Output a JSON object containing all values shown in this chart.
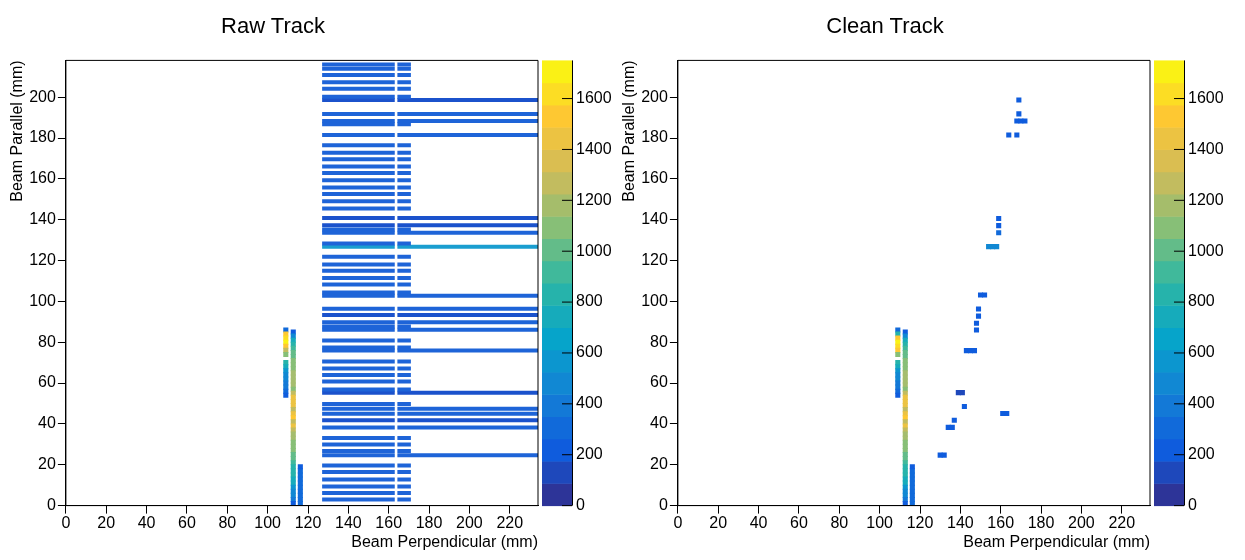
{
  "chart_data": [
    {
      "type": "scatter",
      "title": "Raw Track",
      "xlabel": "Beam Perpendicular (mm)",
      "ylabel": "Beam Parallel (mm)",
      "xlim": [
        0,
        234
      ],
      "ylim": [
        0,
        218
      ],
      "xticks": [
        0,
        20,
        40,
        60,
        80,
        100,
        120,
        140,
        160,
        180,
        200,
        220
      ],
      "yticks": [
        0,
        20,
        40,
        60,
        80,
        100,
        120,
        140,
        160,
        180,
        200
      ],
      "clim": [
        0,
        1750
      ],
      "cticks": [
        0,
        200,
        400,
        600,
        800,
        1000,
        1200,
        1400,
        1600
      ],
      "series": [
        {
          "marker": "square",
          "x": [
            109,
            109,
            109,
            109,
            109,
            109,
            109,
            109,
            109,
            109,
            109,
            109,
            109,
            109,
            109,
            109
          ],
          "values": [
            86,
            84,
            82,
            80,
            78,
            76,
            74,
            70,
            68,
            66,
            64,
            62,
            60,
            58,
            56,
            54
          ],
          "colors": [
            "#116ada",
            "#fec832",
            "#fcdd24",
            "#faf315",
            "#fec832",
            "#c2bc5f",
            "#87bf77",
            "#26b3ab",
            "#16abbb",
            "#0c96cf",
            "#1188d3",
            "#1188d3",
            "#1379d7",
            "#1379d7",
            "#116ada",
            "#0f5cdd"
          ]
        },
        {
          "marker": "square",
          "x": [
            112.7,
            112.7,
            112.7,
            112.7,
            112.7,
            112.7,
            112.7,
            112.7,
            112.7,
            112.7,
            112.7,
            112.7,
            112.7,
            112.7,
            112.7,
            112.7,
            112.7,
            112.7,
            112.7,
            112.7,
            112.7,
            112.7,
            112.7,
            112.7,
            112.7,
            112.7,
            112.7,
            112.7,
            112.7,
            112.7,
            112.7,
            112.7,
            112.7,
            112.7,
            112.7,
            112.7,
            112.7,
            112.7,
            112.7,
            112.7,
            112.7,
            112.7,
            112.7
          ],
          "values": [
            85,
            83,
            81,
            79,
            77,
            75,
            73,
            71,
            69,
            67,
            65,
            63,
            61,
            59,
            57,
            55,
            53,
            51,
            49,
            47,
            45,
            43,
            41,
            39,
            37,
            35,
            33,
            31,
            29,
            27,
            25,
            23,
            21,
            19,
            17,
            15,
            13,
            11,
            9,
            7,
            5,
            3,
            1
          ],
          "colors": [
            "#0f5cdd",
            "#1188d3",
            "#16abbb",
            "#26b3ab",
            "#40b99b",
            "#63bc89",
            "#63bc89",
            "#87bf77",
            "#87bf77",
            "#87bf77",
            "#a5bd6e",
            "#a5bd6e",
            "#a5bd6e",
            "#a5bd6e",
            "#87bf77",
            "#c2bc5f",
            "#ecc342",
            "#ecc342",
            "#ecc342",
            "#c2bc5f",
            "#ecc342",
            "#fec832",
            "#c2bc5f",
            "#ecc342",
            "#c2bc5f",
            "#a5bd6e",
            "#a5bd6e",
            "#87bf77",
            "#87bf77",
            "#87bf77",
            "#63bc89",
            "#63bc89",
            "#40b99b",
            "#26b3ab",
            "#26b3ab",
            "#26b3ab",
            "#16abbb",
            "#16abbb",
            "#0c96cf",
            "#1188d3",
            "#1188d3",
            "#1379d7",
            "#0f5cdd"
          ]
        },
        {
          "marker": "square",
          "x": [
            116.2,
            116.2,
            116.2,
            116.2,
            116.2,
            116.2,
            116.2,
            116.2,
            116.2,
            116.2
          ],
          "values": [
            1,
            3,
            5,
            7,
            9,
            11,
            13,
            15,
            17,
            19
          ],
          "colors": [
            "#116ada",
            "#116ada",
            "#116ada",
            "#116ada",
            "#116ada",
            "#116ada",
            "#116ada",
            "#116ada",
            "#116ada",
            "#0f5cdd"
          ]
        },
        {
          "type": "line",
          "color": "#1e64d8",
          "x": [
            127,
            163,
            163.6,
            164.3,
            171
          ],
          "values": [
            216,
            216,
            null,
            216,
            216
          ]
        },
        {
          "type": "line",
          "color": "#1e64d8",
          "x": [
            127,
            163,
            163.6,
            164.3,
            171
          ],
          "values": [
            213.9,
            213.9,
            null,
            213.9,
            213.9
          ]
        },
        {
          "type": "line",
          "color": "#1e64d8",
          "x": [
            127,
            163,
            163.6,
            164.3,
            171
          ],
          "values": [
            210.8,
            210.8,
            null,
            210.8,
            210.8
          ]
        },
        {
          "type": "line",
          "color": "#1e64d8",
          "x": [
            127,
            163,
            163.6,
            164.3,
            171
          ],
          "values": [
            207.3,
            207.3,
            null,
            207.3,
            207.3
          ]
        },
        {
          "type": "line",
          "color": "#1e64d8",
          "x": [
            127,
            163,
            163.6,
            164.3,
            171
          ],
          "values": [
            204.1,
            204.1,
            null,
            204.1,
            204.1
          ]
        },
        {
          "type": "line",
          "color": "#1e64d8",
          "x": [
            127,
            163,
            163.6,
            164.3,
            171
          ],
          "values": [
            200.2,
            200.2,
            null,
            200.2,
            200.2
          ]
        },
        {
          "type": "line",
          "color": "#1e64d8",
          "x": [
            127,
            163,
            163.6,
            164.3,
            171
          ],
          "values": [
            186.7,
            186.7,
            null,
            186.7,
            186.7
          ]
        },
        {
          "type": "line",
          "color": "#1e64d8",
          "x": [
            127,
            163,
            163.6,
            164.3,
            171
          ],
          "values": [
            176.4,
            176.4,
            null,
            176.4,
            176.4
          ]
        },
        {
          "type": "line",
          "color": "#1e64d8",
          "x": [
            127,
            163,
            163.6,
            164.3,
            171
          ],
          "values": [
            172.8,
            172.8,
            null,
            172.8,
            172.8
          ]
        },
        {
          "type": "line",
          "color": "#1e64d8",
          "x": [
            127,
            163,
            163.6,
            164.3,
            171
          ],
          "values": [
            169.6,
            169.6,
            null,
            169.6,
            169.6
          ]
        },
        {
          "type": "line",
          "color": "#1e64d8",
          "x": [
            127,
            163,
            163.6,
            164.3,
            171
          ],
          "values": [
            166.1,
            166.1,
            null,
            166.1,
            166.1
          ]
        },
        {
          "type": "line",
          "color": "#1e64d8",
          "x": [
            127,
            163,
            163.6,
            164.3,
            171
          ],
          "values": [
            162.9,
            162.9,
            null,
            162.9,
            162.9
          ]
        },
        {
          "type": "line",
          "color": "#1e64d8",
          "x": [
            127,
            163,
            163.6,
            164.3,
            171
          ],
          "values": [
            159.3,
            159.3,
            null,
            159.3,
            159.3
          ]
        },
        {
          "type": "line",
          "color": "#1e64d8",
          "x": [
            127,
            163,
            163.6,
            164.3,
            171
          ],
          "values": [
            155.8,
            155.8,
            null,
            155.8,
            155.8
          ]
        },
        {
          "type": "line",
          "color": "#1e64d8",
          "x": [
            127,
            163,
            163.6,
            164.3,
            171
          ],
          "values": [
            152.6,
            152.6,
            null,
            152.6,
            152.6
          ]
        },
        {
          "type": "line",
          "color": "#1e64d8",
          "x": [
            127,
            163,
            163.6,
            164.3,
            171
          ],
          "values": [
            149,
            149,
            null,
            149,
            149
          ]
        },
        {
          "type": "line",
          "color": "#1e64d8",
          "x": [
            127,
            163,
            163.6,
            164.3,
            171
          ],
          "values": [
            145.5,
            145.5,
            null,
            145.5,
            145.5
          ]
        },
        {
          "type": "line",
          "color": "#1e64d8",
          "x": [
            127,
            163,
            163.6,
            164.3,
            171
          ],
          "values": [
            135.2,
            135.2,
            null,
            135.2,
            135.2
          ]
        },
        {
          "type": "line",
          "color": "#1e64d8",
          "x": [
            127,
            163,
            163.6,
            164.3,
            171
          ],
          "values": [
            128.4,
            128.4,
            null,
            128.4,
            128.4
          ]
        },
        {
          "type": "line",
          "color": "#1e64d8",
          "x": [
            127,
            163,
            163.6,
            164.3,
            171
          ],
          "values": [
            121.8,
            121.8,
            null,
            121.8,
            121.8
          ]
        },
        {
          "type": "line",
          "color": "#1e64d8",
          "x": [
            127,
            163,
            163.6,
            164.3,
            171
          ],
          "values": [
            118.1,
            118.1,
            null,
            118.1,
            118.1
          ]
        },
        {
          "type": "line",
          "color": "#1e64d8",
          "x": [
            127,
            163,
            163.6,
            164.3,
            171
          ],
          "values": [
            115,
            115,
            null,
            115,
            115
          ]
        },
        {
          "type": "line",
          "color": "#1e64d8",
          "x": [
            127,
            163,
            163.6,
            164.3,
            171
          ],
          "values": [
            111.5,
            111.5,
            null,
            111.5,
            111.5
          ]
        },
        {
          "type": "line",
          "color": "#1e64d8",
          "x": [
            127,
            163,
            163.6,
            164.3,
            171
          ],
          "values": [
            108.3,
            108.3,
            null,
            108.3,
            108.3
          ]
        },
        {
          "type": "line",
          "color": "#1e64d8",
          "x": [
            127,
            163,
            163.6,
            164.3,
            171
          ],
          "values": [
            104.4,
            104.4,
            null,
            104.4,
            104.4
          ]
        },
        {
          "type": "line",
          "color": "#1e64d8",
          "x": [
            127,
            163,
            163.6,
            164.3,
            171
          ],
          "values": [
            87.7,
            87.7,
            null,
            87.7,
            87.7
          ]
        },
        {
          "type": "line",
          "color": "#1e64d8",
          "x": [
            127,
            163,
            163.6,
            164.3,
            171
          ],
          "values": [
            80.9,
            80.9,
            null,
            80.9,
            80.9
          ]
        },
        {
          "type": "line",
          "color": "#1e64d8",
          "x": [
            127,
            163,
            163.6,
            164.3,
            171
          ],
          "values": [
            77.4,
            77.4,
            null,
            77.4,
            77.4
          ]
        },
        {
          "type": "line",
          "color": "#1e64d8",
          "x": [
            127,
            163,
            163.6,
            164.3,
            171
          ],
          "values": [
            70.6,
            70.6,
            null,
            70.6,
            70.6
          ]
        },
        {
          "type": "line",
          "color": "#1e64d8",
          "x": [
            127,
            163,
            163.6,
            164.3,
            171
          ],
          "values": [
            67.1,
            67.1,
            null,
            67.1,
            67.1
          ]
        },
        {
          "type": "line",
          "color": "#1e64d8",
          "x": [
            127,
            163,
            163.6,
            164.3,
            171
          ],
          "values": [
            64,
            64,
            null,
            64,
            64
          ]
        },
        {
          "type": "line",
          "color": "#1e64d8",
          "x": [
            127,
            163,
            163.6,
            164.3,
            171
          ],
          "values": [
            60.8,
            60.8,
            null,
            60.8,
            60.8
          ]
        },
        {
          "type": "line",
          "color": "#1e64d8",
          "x": [
            127,
            163,
            163.6,
            164.3,
            171
          ],
          "values": [
            56.9,
            56.9,
            null,
            56.9,
            56.9
          ]
        },
        {
          "type": "line",
          "color": "#1e64d8",
          "x": [
            127,
            163,
            163.6,
            164.3,
            171
          ],
          "values": [
            49.7,
            49.7,
            null,
            49.7,
            49.7
          ]
        },
        {
          "type": "line",
          "color": "#1e64d8",
          "x": [
            127,
            163,
            163.6,
            164.3,
            171
          ],
          "values": [
            33.1,
            33.1,
            null,
            33.1,
            33.1
          ]
        },
        {
          "type": "line",
          "color": "#1e64d8",
          "x": [
            127,
            163,
            163.6,
            164.3,
            171
          ],
          "values": [
            29.9,
            29.9,
            null,
            29.9,
            29.9
          ]
        },
        {
          "type": "line",
          "color": "#1e64d8",
          "x": [
            127,
            163,
            163.6,
            164.3,
            171
          ],
          "values": [
            26.7,
            26.7,
            null,
            26.7,
            26.7
          ]
        },
        {
          "type": "line",
          "color": "#1e64d8",
          "x": [
            127,
            163,
            163.6,
            164.3,
            171
          ],
          "values": [
            19.6,
            19.6,
            null,
            19.6,
            19.6
          ]
        },
        {
          "type": "line",
          "color": "#1e64d8",
          "x": [
            127,
            163,
            163.6,
            164.3,
            171
          ],
          "values": [
            16.5,
            16.5,
            null,
            16.5,
            16.5
          ]
        },
        {
          "type": "line",
          "color": "#1e64d8",
          "x": [
            127,
            163,
            163.6,
            164.3,
            171
          ],
          "values": [
            12.8,
            12.8,
            null,
            12.8,
            12.8
          ]
        },
        {
          "type": "line",
          "color": "#1e64d8",
          "x": [
            127,
            163,
            163.6,
            164.3,
            171
          ],
          "values": [
            9.4,
            9.4,
            null,
            9.4,
            9.4
          ]
        },
        {
          "type": "line",
          "color": "#1e64d8",
          "x": [
            127,
            163,
            163.6,
            164.3,
            171
          ],
          "values": [
            6.2,
            6.2,
            null,
            6.2,
            6.2
          ]
        },
        {
          "type": "line",
          "color": "#1e64d8",
          "x": [
            127,
            163,
            163.6,
            164.3,
            171
          ],
          "values": [
            3,
            3,
            null,
            3,
            3
          ]
        },
        {
          "type": "line",
          "color": "#1b52cc",
          "x": [
            127,
            163,
            163.6,
            164.3,
            234
          ],
          "values": [
            198.6,
            198.6,
            null,
            198.6,
            198.6
          ]
        },
        {
          "type": "line",
          "color": "#1e64d8",
          "x": [
            127,
            163,
            163.6,
            164.3,
            234
          ],
          "values": [
            191.8,
            191.8,
            null,
            191.8,
            191.8
          ]
        },
        {
          "type": "line",
          "color": "#1e64d8",
          "x": [
            127,
            163,
            163.6,
            164.3,
            234
          ],
          "values": [
            188.3,
            188.3,
            null,
            188.3,
            188.3
          ]
        },
        {
          "type": "line",
          "color": "#1e64d8",
          "x": [
            127,
            163,
            163.6,
            164.3,
            234
          ],
          "values": [
            181.5,
            181.5,
            null,
            181.5,
            181.5
          ]
        },
        {
          "type": "line",
          "color": "#1b52cc",
          "x": [
            127,
            163,
            163.6,
            164.3,
            234
          ],
          "values": [
            140.8,
            140.8,
            null,
            140.8,
            140.8
          ]
        },
        {
          "type": "line",
          "color": "#1b52cc",
          "x": [
            127,
            163,
            163.6,
            164.3,
            234
          ],
          "values": [
            137.3,
            137.3,
            null,
            137.3,
            137.3
          ]
        },
        {
          "type": "line",
          "color": "#1e64d8",
          "x": [
            127,
            163,
            163.6,
            164.3,
            234
          ],
          "values": [
            133.6,
            133.6,
            null,
            133.6,
            133.6
          ]
        },
        {
          "type": "line",
          "color": "#1a9ed0",
          "x": [
            127,
            163,
            163.6,
            164.3,
            234
          ],
          "values": [
            126.8,
            126.8,
            null,
            126.8,
            126.8
          ]
        },
        {
          "type": "line",
          "color": "#1e64d8",
          "x": [
            127,
            163,
            163.6,
            164.3,
            234
          ],
          "values": [
            102.8,
            102.8,
            null,
            102.8,
            102.8
          ]
        },
        {
          "type": "line",
          "color": "#1e64d8",
          "x": [
            127,
            163,
            163.6,
            164.3,
            234
          ],
          "values": [
            96.4,
            96.4,
            null,
            96.4,
            96.4
          ]
        },
        {
          "type": "line",
          "color": "#1b52cc",
          "x": [
            127,
            163,
            163.6,
            164.3,
            234
          ],
          "values": [
            93.3,
            93.3,
            null,
            93.3,
            93.3
          ]
        },
        {
          "type": "line",
          "color": "#1e64d8",
          "x": [
            127,
            163,
            163.6,
            164.3,
            234
          ],
          "values": [
            89.8,
            89.8,
            null,
            89.8,
            89.8
          ]
        },
        {
          "type": "line",
          "color": "#1e64d8",
          "x": [
            127,
            163,
            163.6,
            164.3,
            234
          ],
          "values": [
            86.1,
            86.1,
            null,
            86.1,
            86.1
          ]
        },
        {
          "type": "line",
          "color": "#1e64d8",
          "x": [
            127,
            163,
            163.6,
            164.3,
            234
          ],
          "values": [
            75.9,
            75.9,
            null,
            75.9,
            75.9
          ]
        },
        {
          "type": "line",
          "color": "#1b52cc",
          "x": [
            127,
            163,
            163.6,
            164.3,
            234
          ],
          "values": [
            55.3,
            55.3,
            null,
            55.3,
            55.3
          ]
        },
        {
          "type": "line",
          "color": "#1e64d8",
          "x": [
            127,
            163,
            163.6,
            164.3,
            234
          ],
          "values": [
            47.4,
            47.4,
            null,
            47.4,
            47.4
          ]
        },
        {
          "type": "line",
          "color": "#1e64d8",
          "x": [
            127,
            163,
            163.6,
            164.3,
            234
          ],
          "values": [
            45,
            45,
            null,
            45,
            45
          ]
        },
        {
          "type": "line",
          "color": "#1b52cc",
          "x": [
            127,
            163,
            163.6,
            164.3,
            234
          ],
          "values": [
            41.8,
            41.8,
            null,
            41.8,
            41.8
          ]
        },
        {
          "type": "line",
          "color": "#1e64d8",
          "x": [
            127,
            163,
            163.6,
            164.3,
            234
          ],
          "values": [
            38.2,
            38.2,
            null,
            38.2,
            38.2
          ]
        },
        {
          "type": "line",
          "color": "#1e64d8",
          "x": [
            127,
            163,
            163.6,
            164.3,
            234
          ],
          "values": [
            24.7,
            24.7,
            null,
            24.7,
            24.7
          ]
        }
      ]
    },
    {
      "type": "scatter",
      "title": "Clean Track",
      "xlabel": "Beam Perpendicular (mm)",
      "ylabel": "Beam Parallel (mm)",
      "xlim": [
        0,
        234
      ],
      "ylim": [
        0,
        218
      ],
      "xticks": [
        0,
        20,
        40,
        60,
        80,
        100,
        120,
        140,
        160,
        180,
        200,
        220
      ],
      "yticks": [
        0,
        20,
        40,
        60,
        80,
        100,
        120,
        140,
        160,
        180,
        200
      ],
      "clim": [
        0,
        1750
      ],
      "cticks": [
        0,
        200,
        400,
        600,
        800,
        1000,
        1200,
        1400,
        1600
      ],
      "marker": "square",
      "series": [
        {
          "x": [
            109,
            109,
            109,
            109,
            109,
            109,
            109,
            109,
            109,
            109,
            109,
            109,
            109,
            109,
            109,
            109
          ],
          "values": [
            86,
            84,
            82,
            80,
            78,
            76,
            74,
            70,
            68,
            66,
            64,
            62,
            60,
            58,
            56,
            54
          ],
          "colors": [
            "#116ada",
            "#26b3ab",
            "#fec832",
            "#faf315",
            "#fcdd24",
            "#fec832",
            "#87bf77",
            "#26b3ab",
            "#16abbb",
            "#0c96cf",
            "#1188d3",
            "#1188d3",
            "#1379d7",
            "#1379d7",
            "#116ada",
            "#0f5cdd"
          ]
        },
        {
          "x": [
            112.7,
            112.7,
            112.7,
            112.7,
            112.7,
            112.7,
            112.7,
            112.7,
            112.7,
            112.7,
            112.7,
            112.7,
            112.7,
            112.7,
            112.7,
            112.7,
            112.7,
            112.7,
            112.7,
            112.7,
            112.7,
            112.7,
            112.7,
            112.7,
            112.7,
            112.7,
            112.7,
            112.7,
            112.7,
            112.7,
            112.7,
            112.7,
            112.7,
            112.7,
            112.7,
            112.7,
            112.7,
            112.7,
            112.7,
            112.7,
            112.7,
            112.7,
            112.7
          ],
          "values": [
            85,
            83,
            81,
            79,
            77,
            75,
            73,
            71,
            69,
            67,
            65,
            63,
            61,
            59,
            57,
            55,
            53,
            51,
            49,
            47,
            45,
            43,
            41,
            39,
            37,
            35,
            33,
            31,
            29,
            27,
            25,
            23,
            21,
            19,
            17,
            15,
            13,
            11,
            9,
            7,
            5,
            3,
            1
          ],
          "colors": [
            "#0f5cdd",
            "#1188d3",
            "#16abbb",
            "#26b3ab",
            "#40b99b",
            "#63bc89",
            "#63bc89",
            "#87bf77",
            "#87bf77",
            "#87bf77",
            "#a5bd6e",
            "#a5bd6e",
            "#a5bd6e",
            "#a5bd6e",
            "#87bf77",
            "#c2bc5f",
            "#ecc342",
            "#ecc342",
            "#ecc342",
            "#c2bc5f",
            "#ecc342",
            "#fec832",
            "#c2bc5f",
            "#ecc342",
            "#c2bc5f",
            "#a5bd6e",
            "#a5bd6e",
            "#87bf77",
            "#87bf77",
            "#87bf77",
            "#63bc89",
            "#63bc89",
            "#40b99b",
            "#26b3ab",
            "#26b3ab",
            "#26b3ab",
            "#16abbb",
            "#16abbb",
            "#0c96cf",
            "#1188d3",
            "#1188d3",
            "#1379d7",
            "#0f5cdd"
          ]
        },
        {
          "x": [
            116.2,
            116.2,
            116.2,
            116.2,
            116.2,
            116.2,
            116.2,
            116.2,
            116.2,
            116.2
          ],
          "values": [
            1,
            3,
            5,
            7,
            9,
            11,
            13,
            15,
            17,
            19
          ],
          "colors": [
            "#116ada",
            "#116ada",
            "#116ada",
            "#116ada",
            "#116ada",
            "#116ada",
            "#116ada",
            "#116ada",
            "#116ada",
            "#0f5cdd"
          ]
        },
        {
          "x": [
            169,
            169,
            168,
            170,
            172,
            164,
            168,
            159,
            159,
            159,
            154,
            156,
            158,
            150,
            152,
            149,
            149,
            148,
            148,
            143,
            145,
            147,
            139,
            141,
            142,
            137,
            134,
            136,
            161,
            163,
            130,
            132
          ],
          "values": [
            198.6,
            191.8,
            188.3,
            188.3,
            188.3,
            181.5,
            181.5,
            140.6,
            137.1,
            133.6,
            126.8,
            126.8,
            126.8,
            103.1,
            103.1,
            96.3,
            92.8,
            89.3,
            86,
            75.9,
            75.9,
            75.9,
            55.3,
            55.3,
            48.5,
            41.8,
            38.3,
            38.3,
            45.1,
            45.1,
            24.7,
            24.7
          ],
          "colors": [
            "#0f5cdd",
            "#0f5cdd",
            "#0f5cdd",
            "#0f5cdd",
            "#0f5cdd",
            "#0f5cdd",
            "#0f5cdd",
            "#0f5cdd",
            "#0f5cdd",
            "#116ada",
            "#1188d3",
            "#1188d3",
            "#1188d3",
            "#0f5cdd",
            "#0f5cdd",
            "#0f5cdd",
            "#0f5cdd",
            "#0f5cdd",
            "#0f5cdd",
            "#0f5cdd",
            "#0f5cdd",
            "#0f5cdd",
            "#1e48bb",
            "#1e48bb",
            "#0f5cdd",
            "#0f5cdd",
            "#0f5cdd",
            "#0f5cdd",
            "#0f5cdd",
            "#0f5cdd",
            "#0f5cdd",
            "#0f5cdd"
          ]
        }
      ]
    }
  ]
}
